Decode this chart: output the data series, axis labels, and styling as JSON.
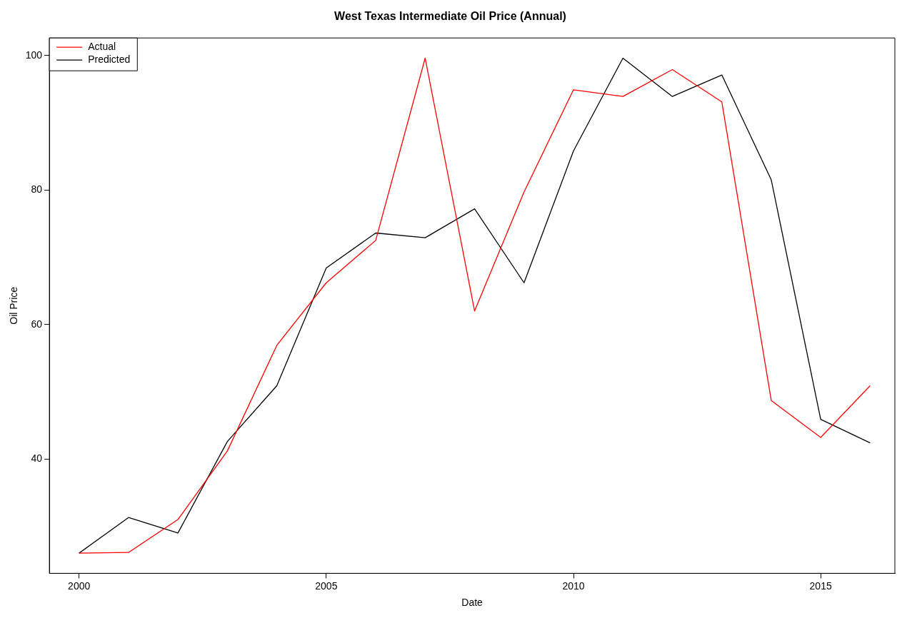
{
  "chart_data": {
    "type": "line",
    "title": "West Texas Intermediate Oil Price (Annual)",
    "xlabel": "Date",
    "ylabel": "Oil Price",
    "x": [
      2000,
      2001,
      2002,
      2003,
      2004,
      2005,
      2006,
      2007,
      2008,
      2009,
      2010,
      2011,
      2012,
      2013,
      2014,
      2015,
      2016
    ],
    "series": [
      {
        "name": "Actual",
        "color": "#ff0000",
        "values": [
          26.0,
          26.1,
          31.0,
          41.2,
          56.9,
          66.2,
          72.5,
          99.6,
          62.0,
          79.7,
          94.9,
          93.9,
          97.9,
          93.1,
          48.7,
          43.2,
          50.9
        ]
      },
      {
        "name": "Predicted",
        "color": "#000000",
        "values": [
          26.0,
          31.3,
          29.0,
          42.6,
          50.9,
          68.4,
          73.6,
          72.9,
          77.2,
          66.2,
          85.8,
          99.6,
          93.9,
          97.1,
          81.5,
          45.9,
          42.4
        ]
      }
    ],
    "xlim": [
      1999.4,
      2016.5
    ],
    "xticks": [
      2000,
      2005,
      2010,
      2015
    ],
    "ylim": [
      23,
      102.6
    ],
    "yticks": [
      40,
      60,
      80,
      100
    ],
    "legend": "top left",
    "grid": false,
    "marker": "none",
    "line_style": "solid"
  }
}
